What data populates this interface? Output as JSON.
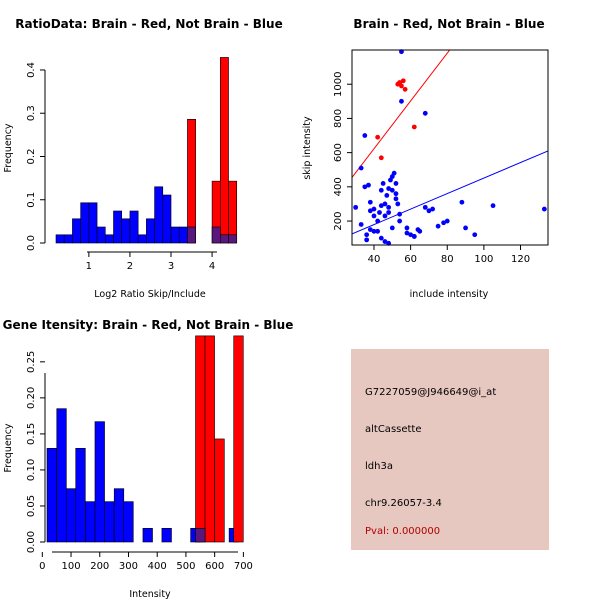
{
  "colors": {
    "brain": "#ff0000",
    "not_brain": "#0000ff",
    "overlap": "#5a167c",
    "pval": "#b40000",
    "panel": "#e7c8c0"
  },
  "chart_data": [
    {
      "type": "bar",
      "title": "RatioData: Brain - Red, Not Brain - Blue",
      "xlabel": "Log2 Ratio Skip/Include",
      "ylabel": "Frequency",
      "xlim": [
        0.2,
        4.85
      ],
      "ylim": [
        0,
        0.43
      ],
      "xticks": [
        "1",
        "2",
        "3",
        "4"
      ],
      "yticks": [
        "0.0",
        "0.1",
        "0.2",
        "0.3",
        "0.4"
      ],
      "bin_width": 0.2,
      "series": [
        {
          "name": "Not Brain",
          "bins": [
            0.3,
            0.5,
            0.7,
            0.9,
            1.1,
            1.3,
            1.5,
            1.7,
            1.9,
            2.1,
            2.3,
            2.5,
            2.7,
            2.9,
            3.1,
            3.3,
            3.5,
            3.7,
            3.9,
            4.1,
            4.3,
            4.5
          ],
          "values": [
            0.019,
            0.019,
            0.056,
            0.093,
            0.093,
            0.037,
            0.019,
            0.074,
            0.056,
            0.074,
            0.019,
            0.056,
            0.13,
            0.111,
            0.037,
            0.037,
            0,
            0,
            0,
            0,
            0,
            0
          ]
        },
        {
          "name": "Brain",
          "bins": [
            3.5,
            3.7,
            3.9,
            4.1,
            4.3,
            4.5
          ],
          "values": [
            0.286,
            0,
            0,
            0.143,
            0.429,
            0.143
          ]
        },
        {
          "name": "Overlap",
          "bins": [
            3.5,
            4.1,
            4.3,
            4.5
          ],
          "values": [
            0.037,
            0.037,
            0.019,
            0.019
          ]
        }
      ]
    },
    {
      "type": "scatter",
      "title": "Brain - Red, Not Brain - Blue",
      "xlabel": "include intensity",
      "ylabel": "skip intensity",
      "xlim": [
        28,
        135
      ],
      "ylim": [
        60,
        1200
      ],
      "xticks": [
        "40",
        "60",
        "80",
        "100",
        "120"
      ],
      "yticks": [
        "200",
        "400",
        "600",
        "800",
        "1000"
      ],
      "series": [
        {
          "name": "Not Brain",
          "x": [
            30,
            33,
            35,
            37,
            38,
            36,
            40,
            42,
            43,
            44,
            45,
            46,
            47,
            48,
            49,
            50,
            51,
            52,
            53,
            54,
            44,
            46,
            48,
            50,
            52,
            40,
            38,
            36,
            42,
            46,
            48,
            55,
            58,
            60,
            62,
            64,
            65,
            68,
            70,
            72,
            78,
            80,
            88,
            90,
            95,
            105,
            55,
            68,
            50,
            48,
            44,
            40,
            38,
            35,
            33,
            62,
            58,
            75,
            133,
            54,
            52
          ],
          "x_note": "approximate",
          "y": [
            280,
            180,
            400,
            410,
            260,
            90,
            140,
            200,
            250,
            380,
            420,
            300,
            350,
            390,
            440,
            460,
            480,
            330,
            300,
            240,
            100,
            80,
            70,
            160,
            420,
            270,
            310,
            120,
            140,
            230,
            280,
            1190,
            160,
            120,
            110,
            150,
            140,
            280,
            260,
            270,
            190,
            200,
            310,
            160,
            120,
            290,
            900,
            830,
            380,
            250,
            290,
            230,
            150,
            700,
            510,
            110,
            130,
            170,
            270,
            200,
            360
          ]
        },
        {
          "name": "Brain",
          "x": [
            44,
            42,
            55,
            54,
            56,
            57,
            53,
            62
          ],
          "y": [
            570,
            690,
            990,
            1010,
            1020,
            970,
            1000,
            750
          ]
        }
      ],
      "fit_lines": [
        {
          "name": "Brain fit",
          "color": "#ff0000",
          "x": [
            28,
            135
          ],
          "y": [
            455,
            1950
          ]
        },
        {
          "name": "Not Brain fit",
          "color": "#0000ff",
          "x": [
            28,
            135
          ],
          "y": [
            125,
            610
          ]
        }
      ]
    },
    {
      "type": "bar",
      "title": "Gene Itensity: Brain - Red, Not Brain - Blue",
      "xlabel": "Intensity",
      "ylabel": "Frequency",
      "xlim": [
        -15,
        730
      ],
      "ylim": [
        0,
        0.29
      ],
      "xticks": [
        "0",
        "100",
        "200",
        "300",
        "400",
        "500",
        "600",
        "700"
      ],
      "yticks": [
        "0.00",
        "0.05",
        "0.10",
        "0.15",
        "0.20",
        "0.25"
      ],
      "bin_width": 33.3,
      "series": [
        {
          "name": "Not Brain",
          "bins": [
            33,
            67,
            100,
            133,
            167,
            200,
            233,
            267,
            300,
            333,
            367,
            400,
            433,
            467,
            500,
            533,
            567,
            600,
            633,
            667,
            700
          ],
          "values": [
            0.13,
            0.185,
            0.074,
            0.13,
            0.056,
            0.167,
            0.056,
            0.074,
            0.056,
            0,
            0.019,
            0,
            0.019,
            0,
            0,
            0.019,
            0,
            0,
            0,
            0.019,
            0
          ]
        },
        {
          "name": "Brain",
          "bins": [
            550,
            583,
            617,
            650,
            683
          ],
          "values": [
            0.286,
            0.286,
            0.143,
            0,
            0.286
          ]
        },
        {
          "name": "Overlap",
          "bins": [
            550
          ],
          "values": [
            0.019
          ]
        }
      ]
    }
  ],
  "info_panel": {
    "probe_id": "G7227059@J946649@i_at",
    "event_type": "altCassette",
    "gene": "ldh3a",
    "location": "chr9.26057-3.4",
    "pval": "Pval: 0.000000"
  }
}
